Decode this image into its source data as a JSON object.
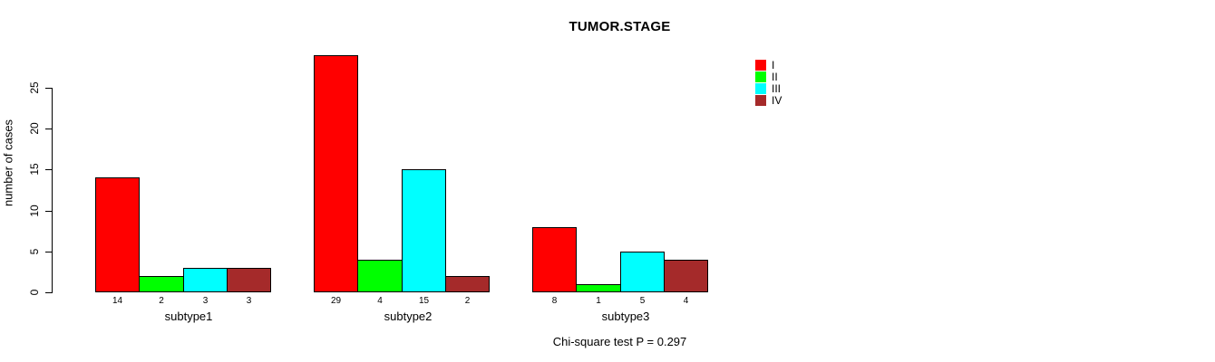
{
  "chart_data": {
    "type": "bar",
    "title": "TUMOR.STAGE",
    "ylabel": "number of cases",
    "xlabel": "",
    "categories": [
      "subtype1",
      "subtype2",
      "subtype3"
    ],
    "series": [
      {
        "name": "I",
        "color": "#FF0000",
        "values": [
          14,
          29,
          8
        ]
      },
      {
        "name": "II",
        "color": "#00FF00",
        "values": [
          2,
          4,
          1
        ]
      },
      {
        "name": "III",
        "color": "#00FFFF",
        "values": [
          3,
          15,
          5
        ]
      },
      {
        "name": "IV",
        "color": "#A52A2A",
        "values": [
          3,
          2,
          4
        ]
      }
    ],
    "yticks": [
      0,
      5,
      10,
      15,
      20,
      25
    ],
    "ylim": [
      0,
      29
    ],
    "grid": false,
    "bar_borders": "#000000",
    "bar_value_labels_shown": true,
    "legend": {
      "position": "top-right",
      "entries": [
        "I",
        "II",
        "III",
        "IV"
      ]
    },
    "annotation": "Chi-square test P = 0.297"
  }
}
